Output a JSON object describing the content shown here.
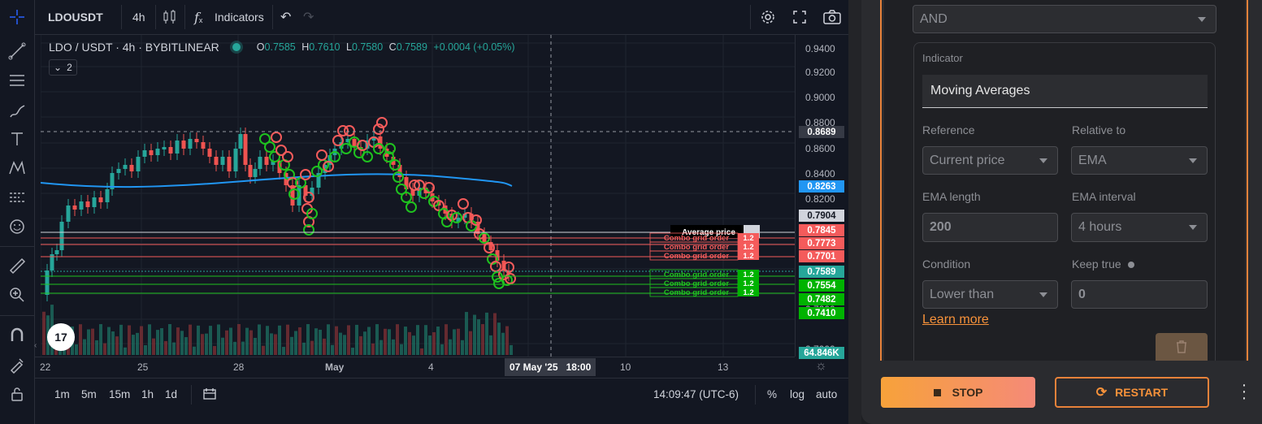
{
  "toolbar": {
    "symbol": "LDOUSDT",
    "interval": "4h",
    "indicators_label": "Indicators"
  },
  "legend": {
    "title": "LDO / USDT · 4h · BYBITLINEAR",
    "o_label": "O",
    "o_value": "0.7585",
    "h_label": "H",
    "h_value": "0.7610",
    "l_label": "L",
    "l_value": "0.7580",
    "c_label": "C",
    "c_value": "0.7589",
    "change": "+0.0004 (+0.05%)",
    "collapse_count": "2"
  },
  "price_axis": {
    "ticks": [
      "0.9400",
      "0.9200",
      "0.9000",
      "0.8800",
      "0.8600",
      "0.8400",
      "0.8200",
      "0.7200",
      "0.7000"
    ],
    "crosshair_price": "0.8689",
    "ema_price": "0.8263",
    "avg_price": "0.7904",
    "sell_prices": [
      "0.7845",
      "0.7773",
      "0.7701"
    ],
    "current_price": "0.7589",
    "buy_prices": [
      "0.7554",
      "0.7482",
      "0.7410"
    ],
    "volume_tag": "64.846K"
  },
  "time_axis": {
    "ticks": [
      "22",
      "25",
      "28",
      "May",
      "4",
      "10",
      "13"
    ],
    "crosshair_time": "07 May '25",
    "crosshair_hour": "18:00"
  },
  "orders": {
    "average_label": "Average price",
    "combo_label": "Combo grid order",
    "qty": "1.2"
  },
  "bottom_bar": {
    "timeframes": [
      "1m",
      "5m",
      "15m",
      "1h",
      "1d"
    ],
    "clock": "14:09:47 (UTC-6)",
    "percent": "%",
    "log": "log",
    "auto": "auto"
  },
  "panel": {
    "logic": "AND",
    "indicator_label": "Indicator",
    "indicator_value": "Moving Averages",
    "reference_label": "Reference",
    "reference_value": "Current price",
    "relative_label": "Relative to",
    "relative_value": "EMA",
    "ema_length_label": "EMA length",
    "ema_length_value": "200",
    "ema_interval_label": "EMA interval",
    "ema_interval_value": "4 hours",
    "condition_label": "Condition",
    "condition_value": "Lower than",
    "keep_true_label": "Keep true",
    "keep_true_value": "0",
    "learn_more": "Learn more",
    "stop_label": "STOP",
    "restart_label": "RESTART"
  },
  "colors": {
    "up": "#26a69a",
    "down": "#ef5350",
    "ema": "#2196f3",
    "buy_tag": "#00b300",
    "sell_tag": "#f45b5b",
    "accent_orange": "#f7923a"
  }
}
